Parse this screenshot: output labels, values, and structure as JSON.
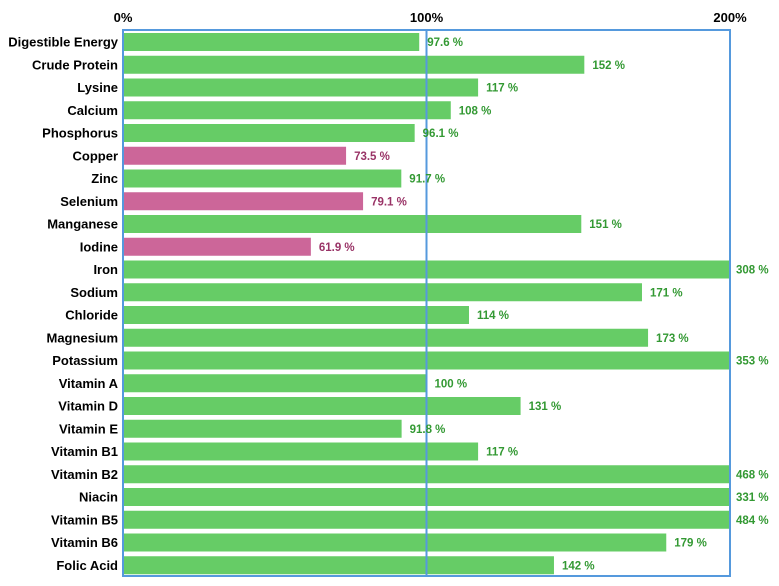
{
  "chart_data": {
    "type": "bar",
    "orientation": "horizontal",
    "xlim": [
      0,
      200
    ],
    "axis_ticks": [
      {
        "value": 0,
        "label": "0%"
      },
      {
        "value": 100,
        "label": "100%"
      },
      {
        "value": 200,
        "label": "200%"
      }
    ],
    "gridlines": [
      100
    ],
    "colors": {
      "adequate": "#66cc66",
      "deficient": "#cc6699",
      "adequate_label": "#339933",
      "deficient_label": "#993366",
      "frame": "#5599dd",
      "category_label": "#000000"
    },
    "categories": [
      {
        "name": "Digestible Energy",
        "value": 97.6,
        "label": "97.6 %",
        "status": "adequate"
      },
      {
        "name": "Crude Protein",
        "value": 152,
        "label": "152 %",
        "status": "adequate"
      },
      {
        "name": "Lysine",
        "value": 117,
        "label": "117 %",
        "status": "adequate"
      },
      {
        "name": "Calcium",
        "value": 108,
        "label": "108 %",
        "status": "adequate"
      },
      {
        "name": "Phosphorus",
        "value": 96.1,
        "label": "96.1 %",
        "status": "adequate"
      },
      {
        "name": "Copper",
        "value": 73.5,
        "label": "73.5 %",
        "status": "deficient"
      },
      {
        "name": "Zinc",
        "value": 91.7,
        "label": "91.7 %",
        "status": "adequate"
      },
      {
        "name": "Selenium",
        "value": 79.1,
        "label": "79.1 %",
        "status": "deficient"
      },
      {
        "name": "Manganese",
        "value": 151,
        "label": "151 %",
        "status": "adequate"
      },
      {
        "name": "Iodine",
        "value": 61.9,
        "label": "61.9 %",
        "status": "deficient"
      },
      {
        "name": "Iron",
        "value": 308,
        "label": "308 %",
        "status": "adequate"
      },
      {
        "name": "Sodium",
        "value": 171,
        "label": "171 %",
        "status": "adequate"
      },
      {
        "name": "Chloride",
        "value": 114,
        "label": "114 %",
        "status": "adequate"
      },
      {
        "name": "Magnesium",
        "value": 173,
        "label": "173 %",
        "status": "adequate"
      },
      {
        "name": "Potassium",
        "value": 353,
        "label": "353 %",
        "status": "adequate"
      },
      {
        "name": "Vitamin A",
        "value": 100,
        "label": "100 %",
        "status": "adequate"
      },
      {
        "name": "Vitamin D",
        "value": 131,
        "label": "131 %",
        "status": "adequate"
      },
      {
        "name": "Vitamin E",
        "value": 91.8,
        "label": "91.8 %",
        "status": "adequate"
      },
      {
        "name": "Vitamin B1",
        "value": 117,
        "label": "117 %",
        "status": "adequate"
      },
      {
        "name": "Vitamin B2",
        "value": 468,
        "label": "468 %",
        "status": "adequate"
      },
      {
        "name": "Niacin",
        "value": 331,
        "label": "331 %",
        "status": "adequate"
      },
      {
        "name": "Vitamin B5",
        "value": 484,
        "label": "484 %",
        "status": "adequate"
      },
      {
        "name": "Vitamin B6",
        "value": 179,
        "label": "179 %",
        "status": "adequate"
      },
      {
        "name": "Folic Acid",
        "value": 142,
        "label": "142 %",
        "status": "adequate"
      }
    ]
  }
}
